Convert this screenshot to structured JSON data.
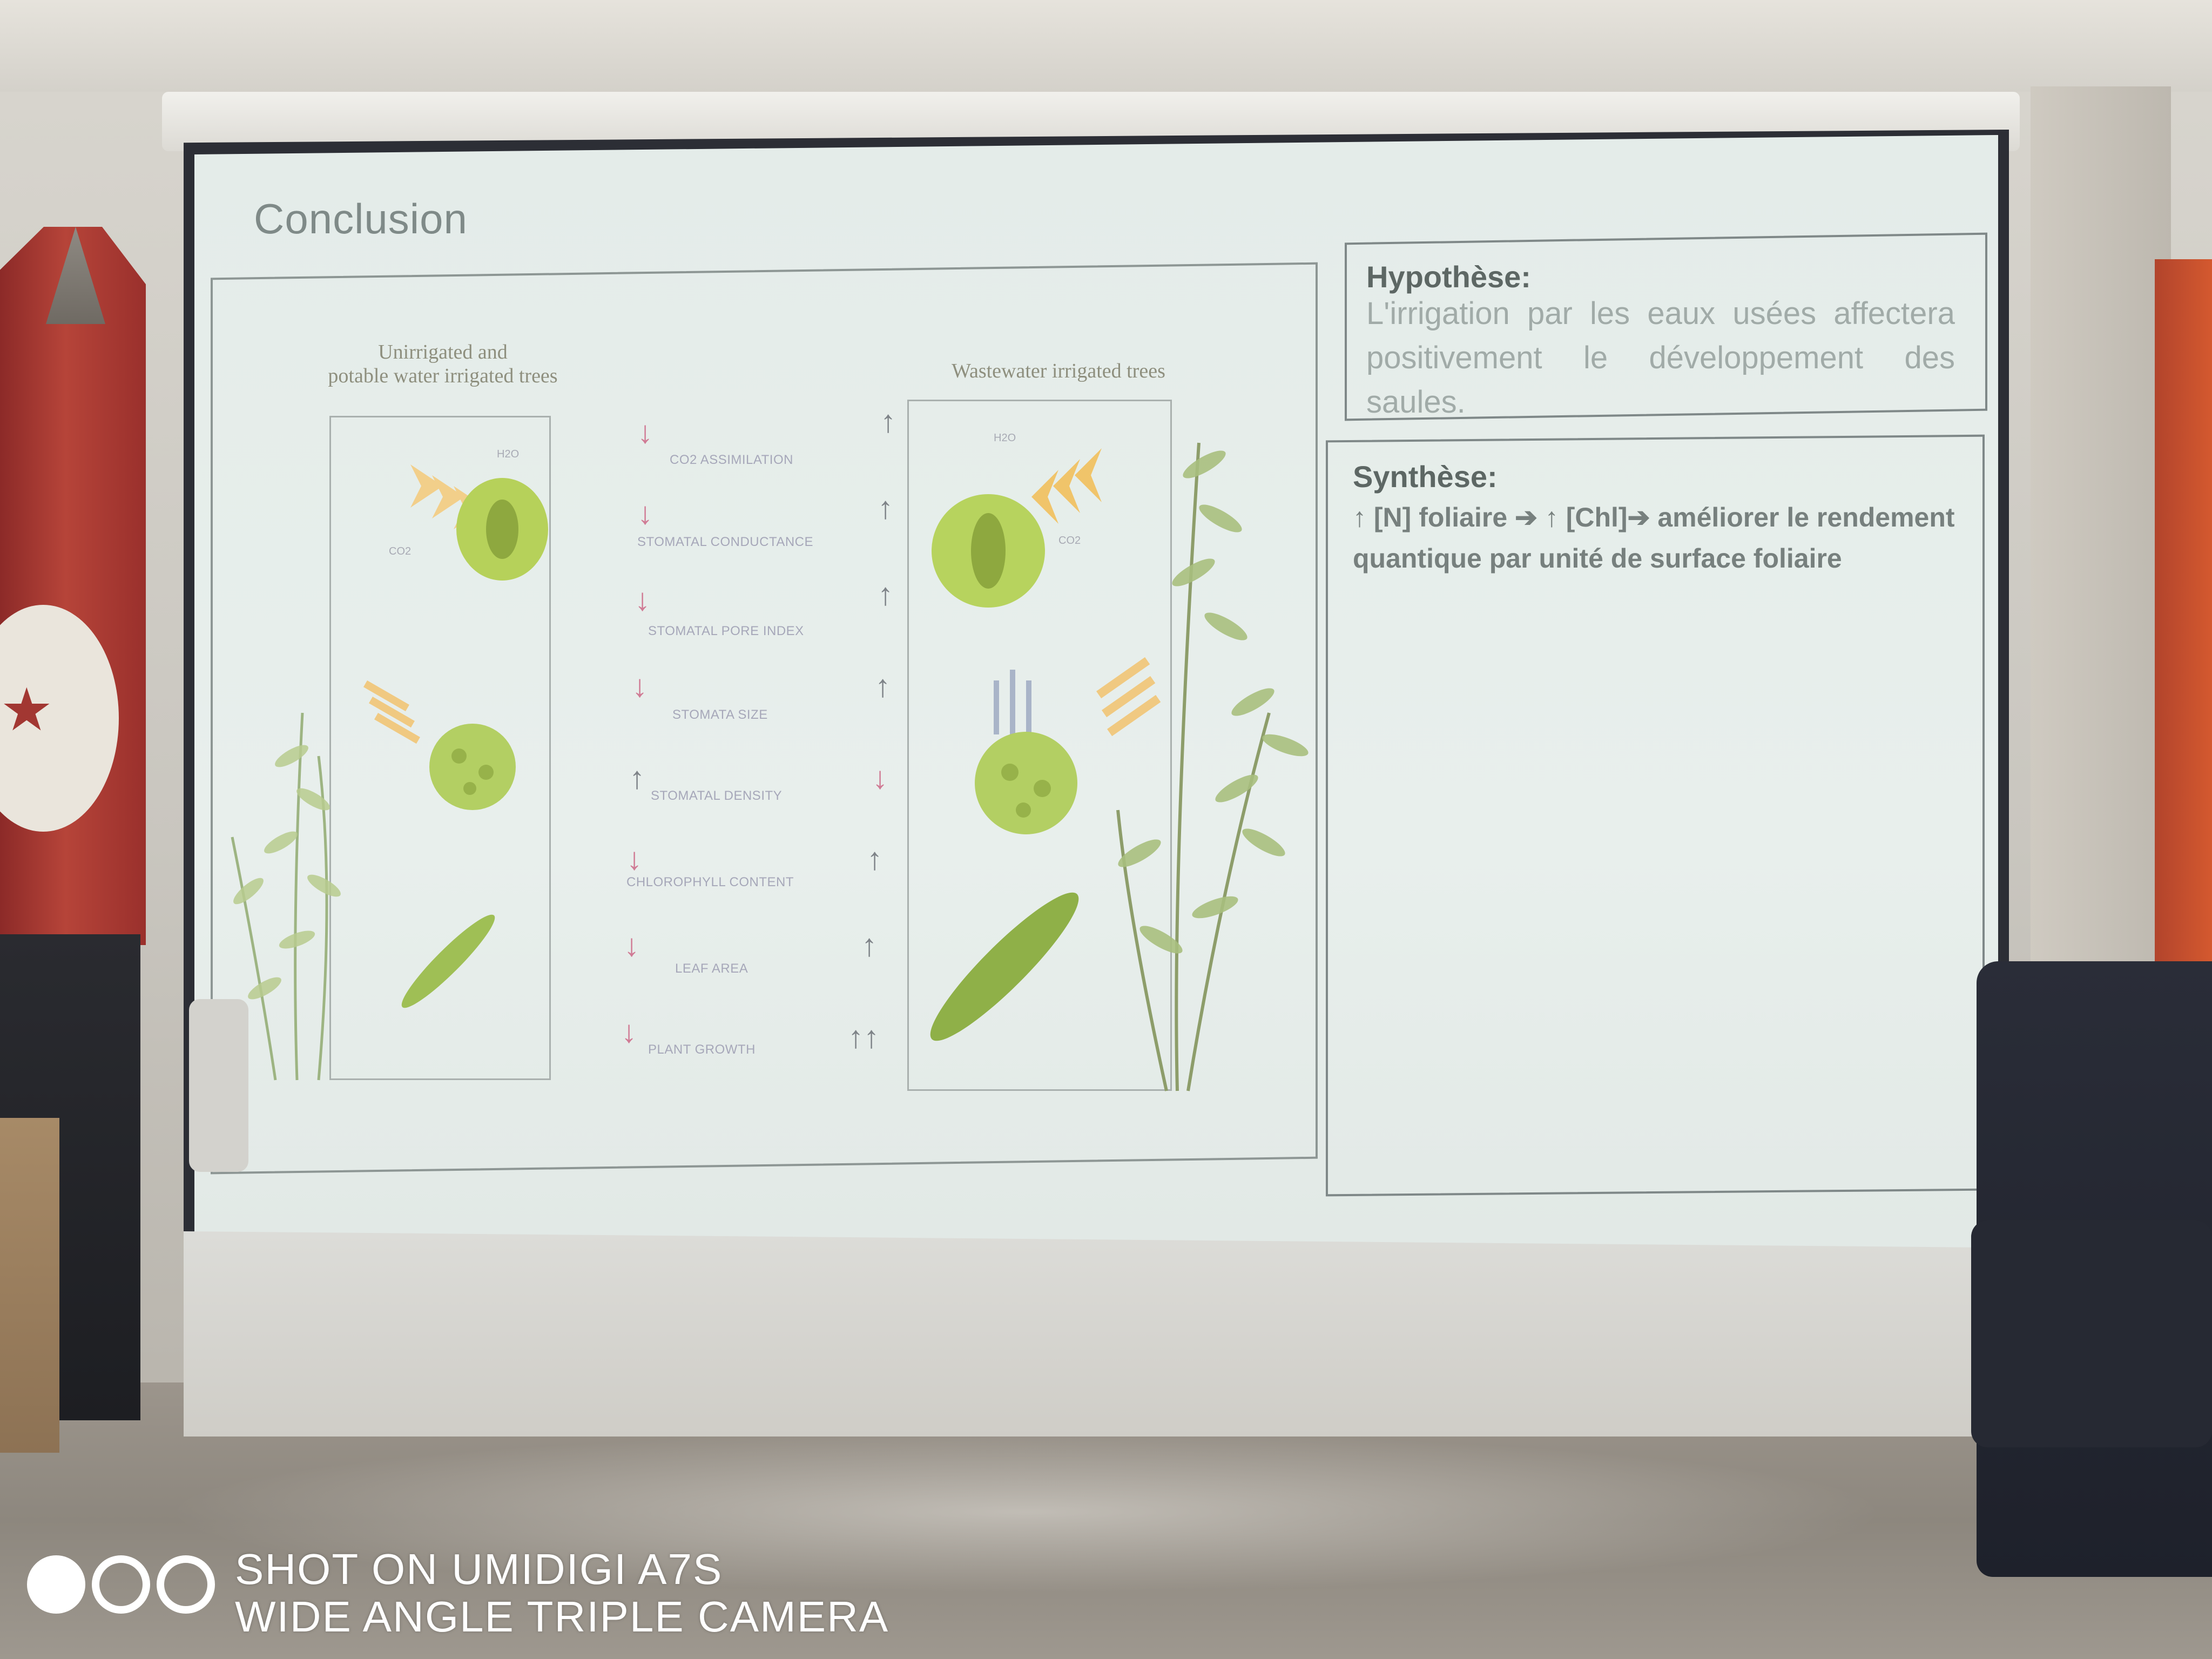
{
  "slide": {
    "title": "Conclusion",
    "figure": {
      "left_label": [
        "Unirrigated and",
        "potable water irrigated trees"
      ],
      "right_label": "Wastewater irrigated trees",
      "parameters": [
        "CO2 ASSIMILATION",
        "STOMATAL CONDUCTANCE",
        "STOMATAL PORE INDEX",
        "STOMATA SIZE",
        "STOMATAL DENSITY",
        "CHLOROPHYLL CONTENT",
        "LEAF AREA",
        "PLANT GROWTH"
      ],
      "molecule_labels": {
        "h2o_left": "H2O",
        "co2_left": "CO2",
        "h2o_right": "H2O",
        "co2_right": "CO2"
      }
    },
    "hypothesis": {
      "heading": "Hypothèse:",
      "text": "L'irrigation par les eaux usées affectera positivement le développement des saules."
    },
    "synthesis": {
      "heading": "Synthèse:",
      "text": "↑ [N] foliaire ➔ ↑ [Chl]➔ améliorer le rendement quantique par unité de surface foliaire"
    }
  },
  "watermark": {
    "line1": "SHOT ON UMIDIGI A7S",
    "line2": "WIDE ANGLE TRIPLE CAMERA"
  },
  "colors": {
    "screen": "#e6edea",
    "accent_red": "#cf8e9f",
    "leaf_green": "#a9c24e",
    "flag_red": "#b64439"
  }
}
